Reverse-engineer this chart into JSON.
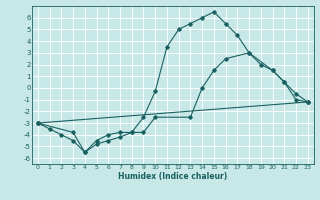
{
  "xlabel": "Humidex (Indice chaleur)",
  "bg_color": "#c8e8e8",
  "line_color": "#1a6060",
  "grid_color": "#ffffff",
  "xlim": [
    -0.5,
    23.5
  ],
  "ylim": [
    -6.5,
    7
  ],
  "xticks": [
    0,
    1,
    2,
    3,
    4,
    5,
    6,
    7,
    8,
    9,
    10,
    11,
    12,
    13,
    14,
    15,
    16,
    17,
    18,
    19,
    20,
    21,
    22,
    23
  ],
  "yticks": [
    -6,
    -5,
    -4,
    -3,
    -2,
    -1,
    0,
    1,
    2,
    3,
    4,
    5,
    6
  ],
  "line1_x": [
    0,
    1,
    2,
    3,
    4,
    5,
    6,
    7,
    8,
    9,
    10,
    11,
    12,
    13,
    14,
    15,
    16,
    17,
    18,
    19,
    20,
    21,
    22,
    23
  ],
  "line1_y": [
    -3,
    -3.5,
    -4,
    -4.5,
    -5.5,
    -4.5,
    -4,
    -3.8,
    -3.8,
    -2.5,
    -0.3,
    3.5,
    5,
    5.5,
    6,
    6.5,
    5.5,
    4.5,
    3,
    2,
    1.5,
    0.5,
    -1,
    -1.2
  ],
  "line2_x": [
    0,
    3,
    4,
    5,
    6,
    7,
    8,
    9,
    10,
    13,
    14,
    15,
    16,
    18,
    20,
    21,
    22,
    23
  ],
  "line2_y": [
    -3,
    -3.8,
    -5.5,
    -4.8,
    -4.5,
    -4.2,
    -3.8,
    -3.8,
    -2.5,
    -2.5,
    0,
    1.5,
    2.5,
    3,
    1.5,
    0.5,
    -0.5,
    -1.2
  ],
  "line3_x": [
    0,
    23
  ],
  "line3_y": [
    -3,
    -1.2
  ]
}
